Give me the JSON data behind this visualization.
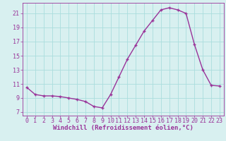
{
  "hours": [
    0,
    1,
    2,
    3,
    4,
    5,
    6,
    7,
    8,
    9,
    10,
    11,
    12,
    13,
    14,
    15,
    16,
    17,
    18,
    19,
    20,
    21,
    22,
    23
  ],
  "values": [
    10.5,
    9.5,
    9.3,
    9.3,
    9.2,
    9.0,
    8.8,
    8.5,
    7.8,
    7.6,
    9.5,
    12.0,
    14.5,
    16.5,
    18.5,
    20.0,
    21.5,
    21.8,
    21.5,
    21.0,
    16.6,
    13.0,
    10.8,
    10.7
  ],
  "line_color": "#993399",
  "marker": "+",
  "marker_size": 3,
  "marker_linewidth": 1.0,
  "bg_color": "#d8f0f0",
  "grid_color": "#aadddd",
  "xlabel": "Windchill (Refroidissement éolien,°C)",
  "xlabel_color": "#993399",
  "xlabel_fontsize": 6.5,
  "tick_color": "#993399",
  "tick_fontsize": 6,
  "ylim": [
    6.5,
    22.5
  ],
  "yticks": [
    7,
    9,
    11,
    13,
    15,
    17,
    19,
    21
  ],
  "xlim": [
    -0.5,
    23.5
  ],
  "line_width": 1.0
}
